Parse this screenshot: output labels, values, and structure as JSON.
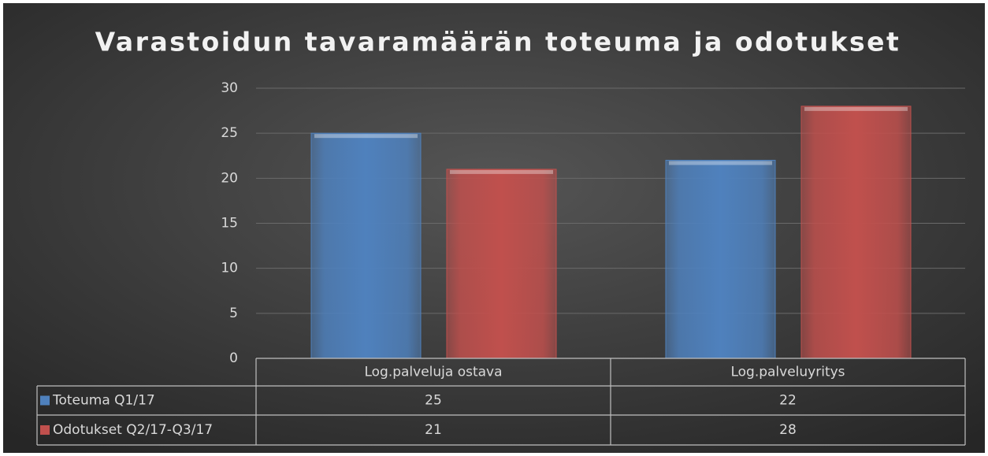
{
  "chart_data": {
    "type": "bar",
    "title": "Varastoidun tavaramäärän toteuma ja odotukset",
    "categories": [
      "Log.palveluja ostava",
      "Log.palveluyritys"
    ],
    "series": [
      {
        "name": "Toteuma Q1/17",
        "color": "#4f81bd",
        "values": [
          25,
          22
        ]
      },
      {
        "name": "Odotukset Q2/17-Q3/17",
        "color": "#c0504d",
        "values": [
          21,
          28
        ]
      }
    ],
    "ylim": [
      0,
      30
    ],
    "yticks": [
      0,
      5,
      10,
      15,
      20,
      25,
      30
    ],
    "grid": true,
    "data_table": true
  }
}
